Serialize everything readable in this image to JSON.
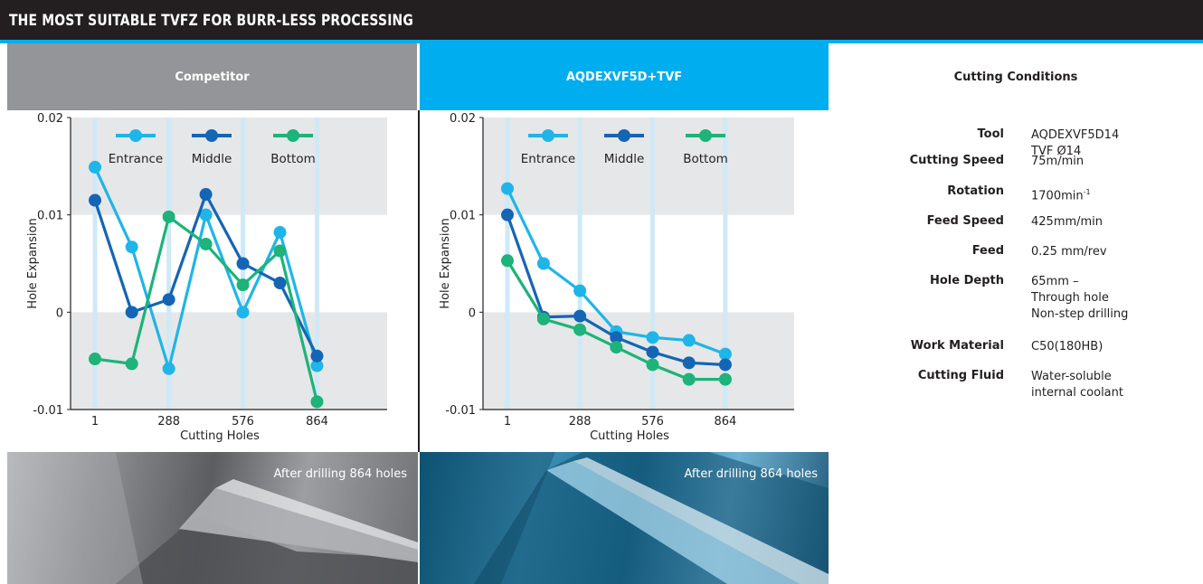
{
  "banner": {
    "title": "THE MOST SUITABLE TVFZ FOR BURR-LESS PROCESSING"
  },
  "headers": {
    "competitor": "Competitor",
    "aqdex": "AQDEXVF5D+TVF",
    "conditions": "Cutting Conditions"
  },
  "colors": {
    "entrance": "#1fb5e8",
    "middle": "#1565b5",
    "bottom": "#1db37a",
    "band": "#e6e7e8",
    "accent": "#00aeef"
  },
  "chart_data": [
    {
      "type": "line",
      "panel": "Competitor",
      "xlabel": "Cutting Holes",
      "ylabel": "Hole Expansion",
      "yticks": [
        "0.02",
        "0.01",
        "0",
        "-0.01"
      ],
      "xticks": [
        "1",
        "288",
        "576",
        "864"
      ],
      "ylim": [
        -0.01,
        0.02
      ],
      "legend": [
        "Entrance",
        "Middle",
        "Bottom"
      ],
      "legend_position": "top",
      "grid": "alternating horizontal bands",
      "x": [
        1,
        144,
        288,
        432,
        576,
        720,
        864
      ],
      "series": [
        {
          "name": "Entrance",
          "values": [
            0.0149,
            0.0067,
            -0.0058,
            0.01,
            0.0,
            0.0082,
            -0.0055
          ]
        },
        {
          "name": "Middle",
          "values": [
            0.0115,
            0.0,
            0.0013,
            0.0121,
            0.005,
            0.003,
            -0.0045
          ]
        },
        {
          "name": "Bottom",
          "values": [
            -0.0048,
            -0.0053,
            0.0098,
            0.007,
            0.0028,
            0.0063,
            -0.0092
          ]
        }
      ]
    },
    {
      "type": "line",
      "panel": "AQDEXVF5D+TVF",
      "xlabel": "Cutting Holes",
      "ylabel": "Hole Expansion",
      "yticks": [
        "0.02",
        "0.01",
        "0",
        "-0.01"
      ],
      "xticks": [
        "1",
        "288",
        "576",
        "864"
      ],
      "ylim": [
        -0.01,
        0.02
      ],
      "legend": [
        "Entrance",
        "Middle",
        "Bottom"
      ],
      "legend_position": "top",
      "grid": "alternating horizontal bands",
      "x": [
        1,
        144,
        288,
        432,
        576,
        720,
        864
      ],
      "series": [
        {
          "name": "Entrance",
          "values": [
            0.0127,
            0.005,
            0.0022,
            -0.002,
            -0.0026,
            -0.0029,
            -0.0043
          ]
        },
        {
          "name": "Middle",
          "values": [
            0.01,
            -0.0005,
            -0.0004,
            -0.0026,
            -0.0041,
            -0.0052,
            -0.0054
          ]
        },
        {
          "name": "Bottom",
          "values": [
            0.0053,
            -0.0007,
            -0.0018,
            -0.0036,
            -0.0054,
            -0.0069,
            -0.0069
          ]
        }
      ]
    }
  ],
  "photos": {
    "competitor_caption": "After drilling 864 holes",
    "aqdex_caption": "After drilling 864 holes"
  },
  "conditions": [
    {
      "label": "Tool",
      "value": "AQDEXVF5D14\nTVF Ø14"
    },
    {
      "label": "Cutting Speed",
      "value": "75m/min"
    },
    {
      "label": "Rotation",
      "value": "1700min",
      "sup": "-1"
    },
    {
      "label": "Feed Speed",
      "value": "425mm/min"
    },
    {
      "label": "Feed",
      "value": "0.25 mm/rev"
    },
    {
      "label": "Hole Depth",
      "value": "65mm –\nThrough hole\nNon-step drilling"
    },
    {
      "label": "Work Material",
      "value": "C50(180HB)"
    },
    {
      "label": "Cutting Fluid",
      "value": "Water-soluble\ninternal coolant"
    }
  ]
}
